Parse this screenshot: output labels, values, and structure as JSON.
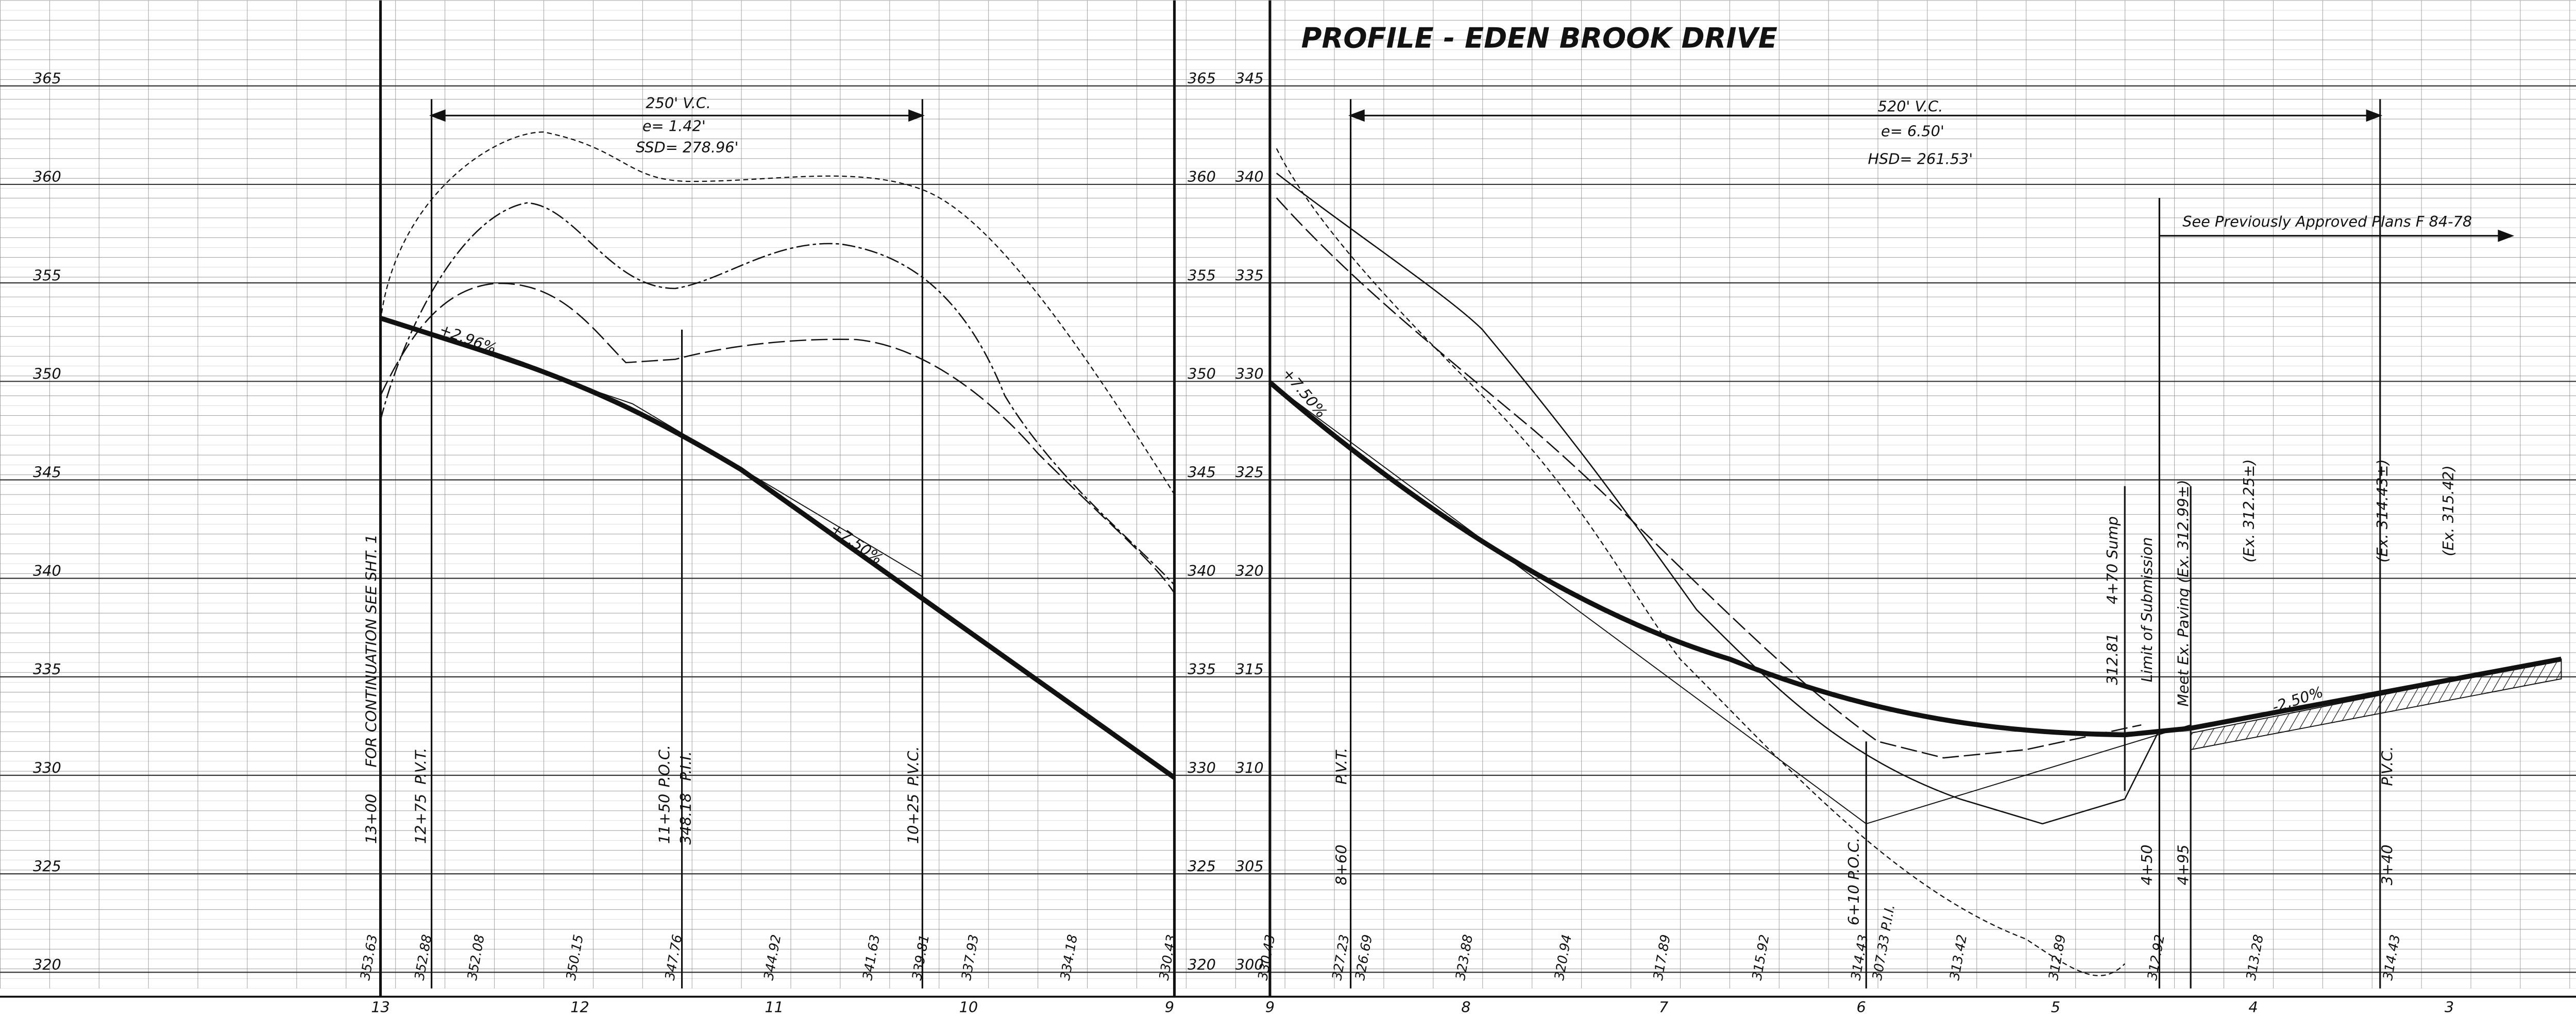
{
  "title": "PROFILE - EDEN BROOK DRIVE",
  "left_profile": {
    "elevations": [
      365,
      360,
      355,
      350,
      345,
      340,
      335,
      330,
      325,
      320
    ],
    "curve": {
      "length": "250' V.C.",
      "e": "e= 1.42'",
      "ssd": "SSD= 278.96'"
    },
    "grades": [
      "+2.96%",
      "+7.50%"
    ],
    "notes": [
      "FOR CONTINUATION SEE SHT. 1",
      "13+00",
      "P.V.T.",
      "12+75",
      "P.O.C.",
      "P.I.I.",
      "11+50",
      "348.18",
      "P.V.C.",
      "10+25"
    ],
    "bottom_elevations": [
      "353.63",
      "352.88",
      "352.08",
      "350.15",
      "347.76",
      "344.92",
      "341.63",
      "339.81",
      "337.93",
      "334.18",
      "330.43"
    ],
    "stations": [
      "13",
      "12",
      "11",
      "10",
      "9"
    ]
  },
  "right_profile": {
    "elevations": [
      345,
      340,
      335,
      330,
      325,
      320,
      315,
      310,
      305,
      300
    ],
    "curve": {
      "length": "520' V.C.",
      "e": "e= 6.50'",
      "hsd": "HSD= 261.53'"
    },
    "grades": [
      "+7.50%",
      "-2.50%"
    ],
    "reference": "See Previously Approved Plans F 84-78",
    "notes": [
      "P.V.T.",
      "8+60",
      "6+10 P.O.C.",
      "4+70 Sump",
      "312.81",
      "Limit of Submission",
      "Meet Ex. Paving (Ex. 312.99±)",
      "(Ex. 312.25±)",
      "(Ex. 314.43±)",
      "(Ex. 315.42)",
      "P.V.C.",
      "3+40",
      "4+50",
      "4+95"
    ],
    "bottom_elevations": [
      "330.43",
      "327.23",
      "326.69",
      "323.88",
      "320.94",
      "317.89",
      "315.92",
      "314.43",
      "307.33 P.I.I.",
      "313.42",
      "312.89",
      "312.92",
      "313.28",
      "314.43"
    ],
    "stations": [
      "9",
      "8",
      "7",
      "6",
      "5",
      "4",
      "3"
    ]
  }
}
